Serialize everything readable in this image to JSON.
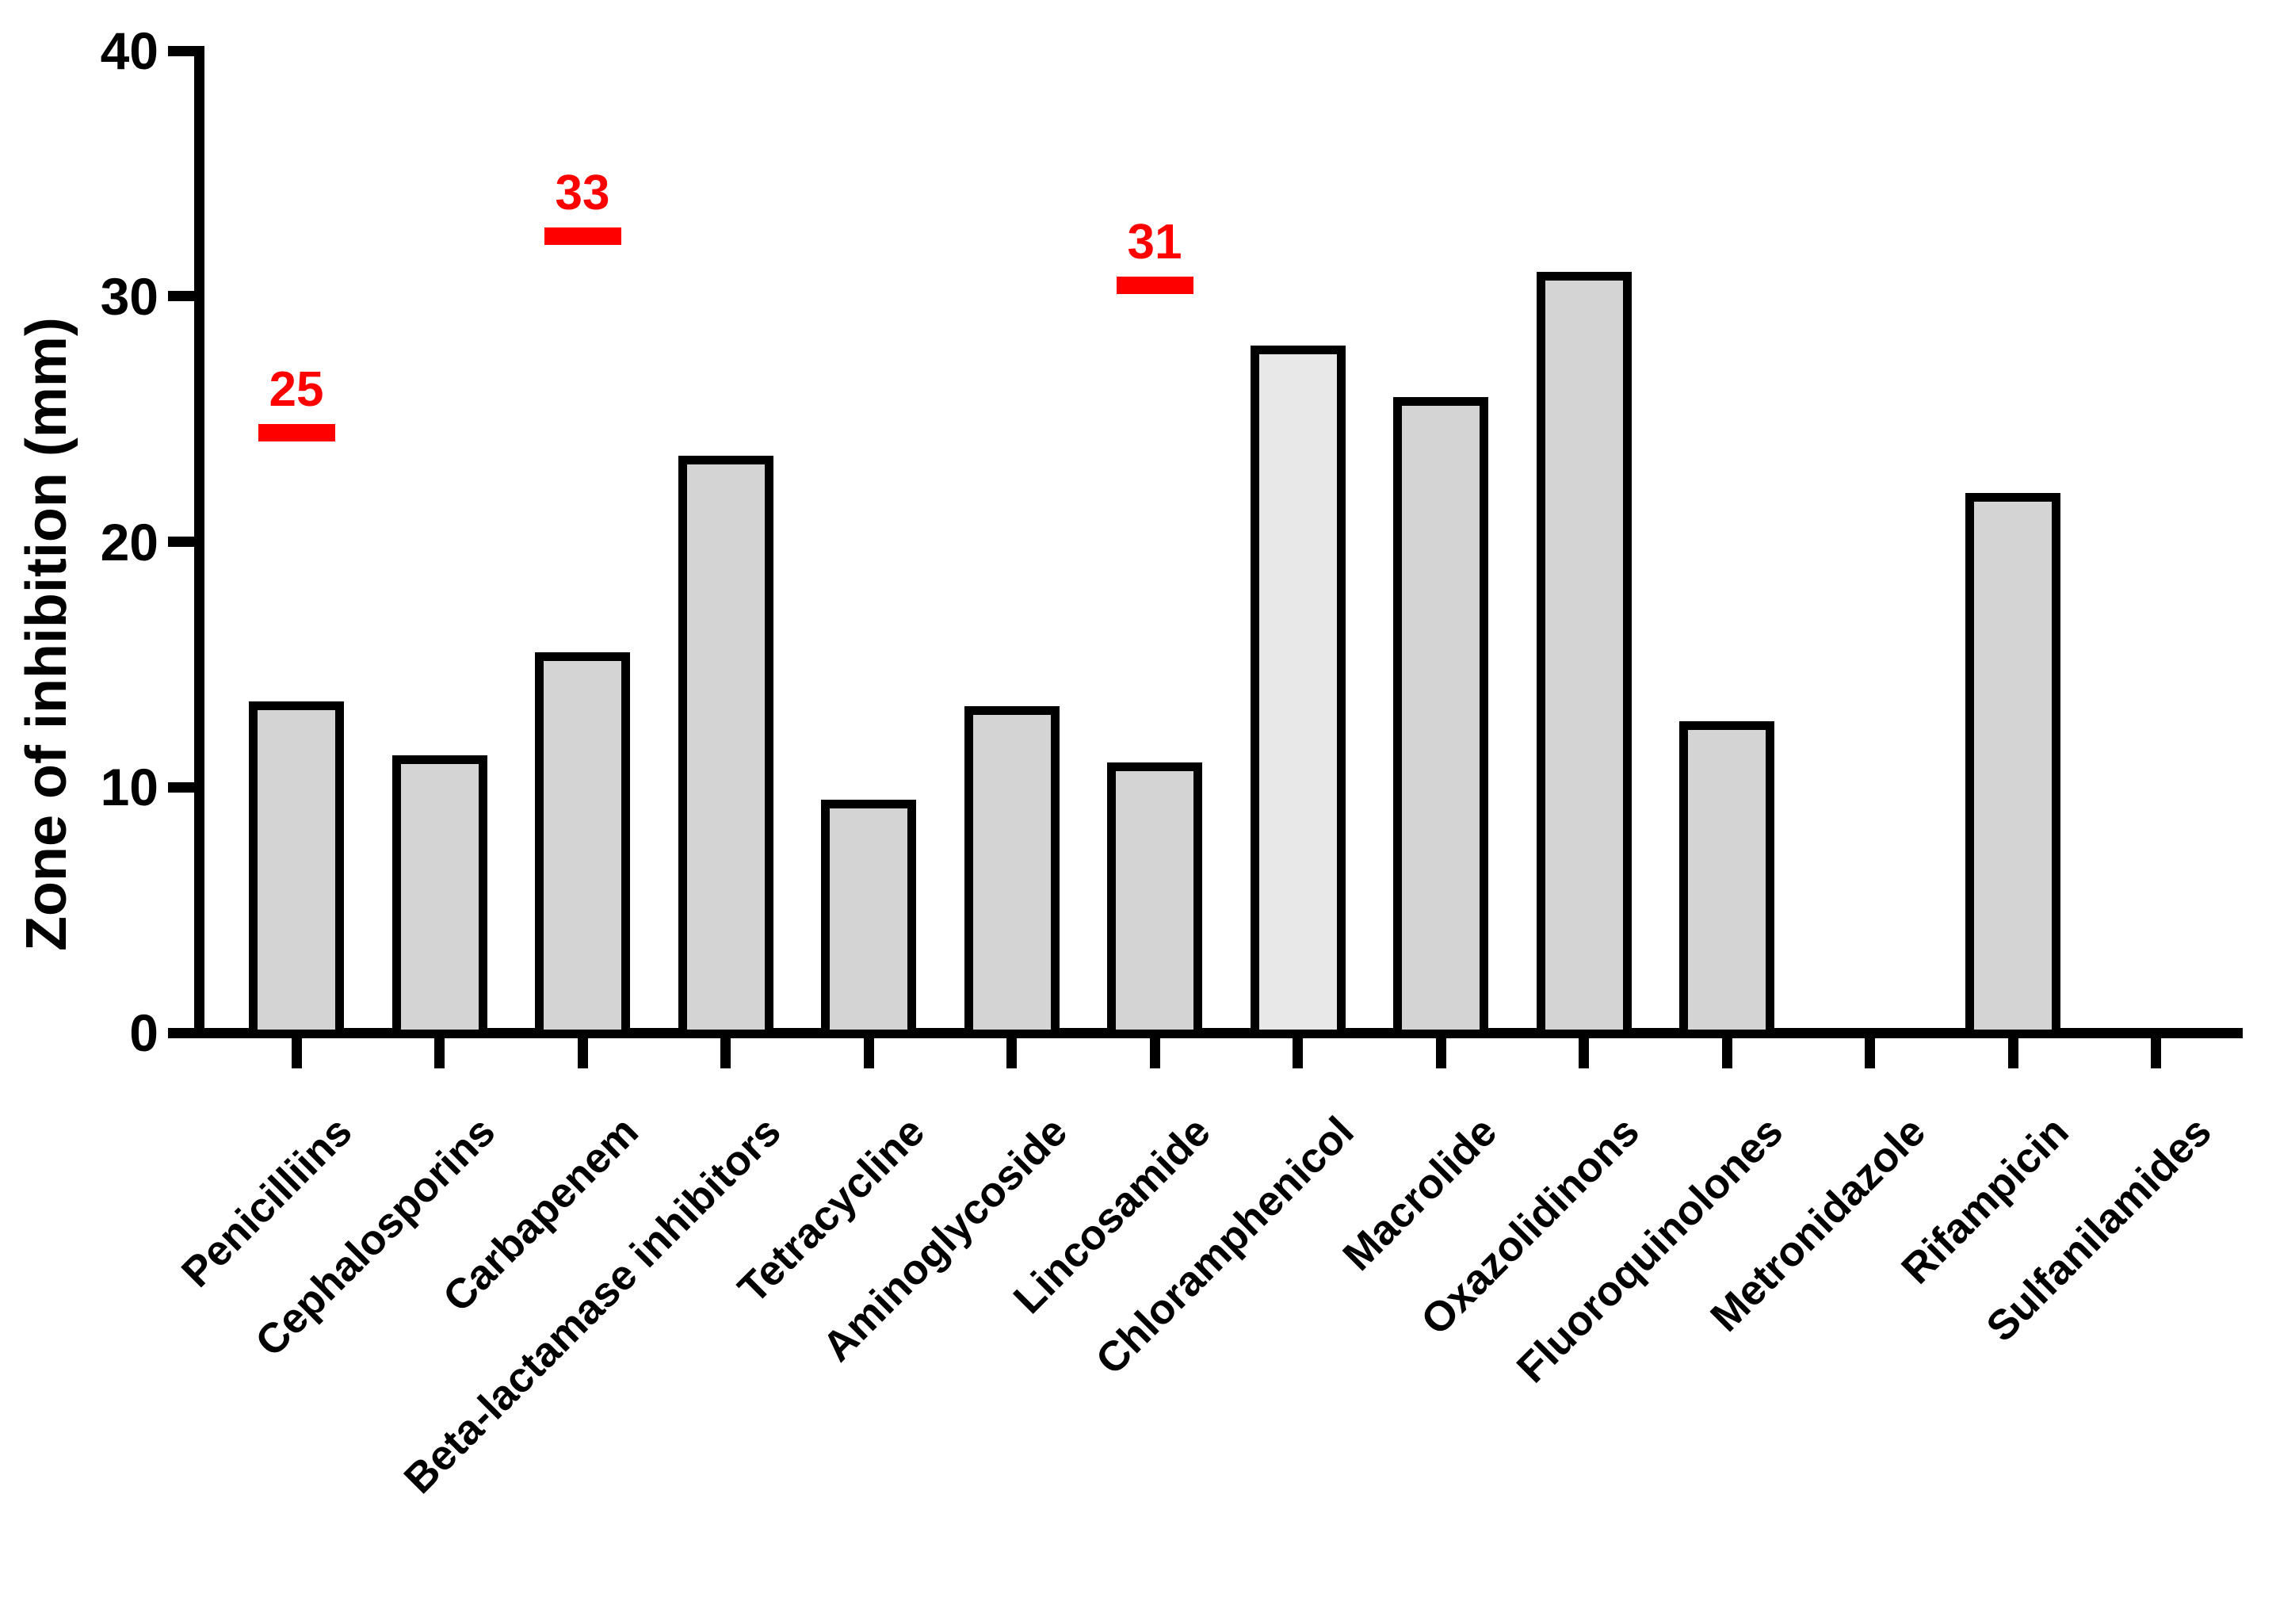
{
  "figure": {
    "background": "#ffffff",
    "colors": {
      "bar_fill": "#d4d4d4",
      "bar_fill_light": "#e8e8e8",
      "bar_outline": "#000000",
      "axis_color": "#000000",
      "annotation_red": "#ff0000"
    }
  },
  "chart_data": {
    "type": "bar",
    "title": "",
    "xlabel": "",
    "ylabel": "Zone of inhibition (mm)",
    "ylim": [
      0,
      40
    ],
    "yticks": [
      "0",
      "10",
      "20",
      "30",
      "40"
    ],
    "grid": false,
    "legend": false,
    "categories": [
      "Penicilliins",
      "Cephalosporins",
      "Carbapenem",
      "Beta-lactamase inhibitors",
      "Tetracycline",
      "Aminoglycoside",
      "Lincosamide",
      "Chloramphenicol",
      "Macrolide",
      "Oxazolidinons",
      "Fluoroquinolones",
      "Metronidazole",
      "Rifampicin",
      "Sulfanilamides"
    ],
    "values": [
      13.5,
      11.3,
      15.5,
      23.5,
      9.5,
      13.3,
      11.0,
      28.0,
      25.9,
      31.0,
      12.7,
      0,
      22.0,
      0
    ],
    "light_fill_categories": [
      "Chloramphenicol"
    ],
    "annotations": [
      {
        "category_index": 0,
        "category": "Penicilliins",
        "label": "25",
        "value": 25
      },
      {
        "category_index": 2,
        "category": "Carbapenem",
        "label": "33",
        "value": 33
      },
      {
        "category_index": 6,
        "category": "Lincosamide",
        "label": "31",
        "value": 31
      }
    ]
  }
}
